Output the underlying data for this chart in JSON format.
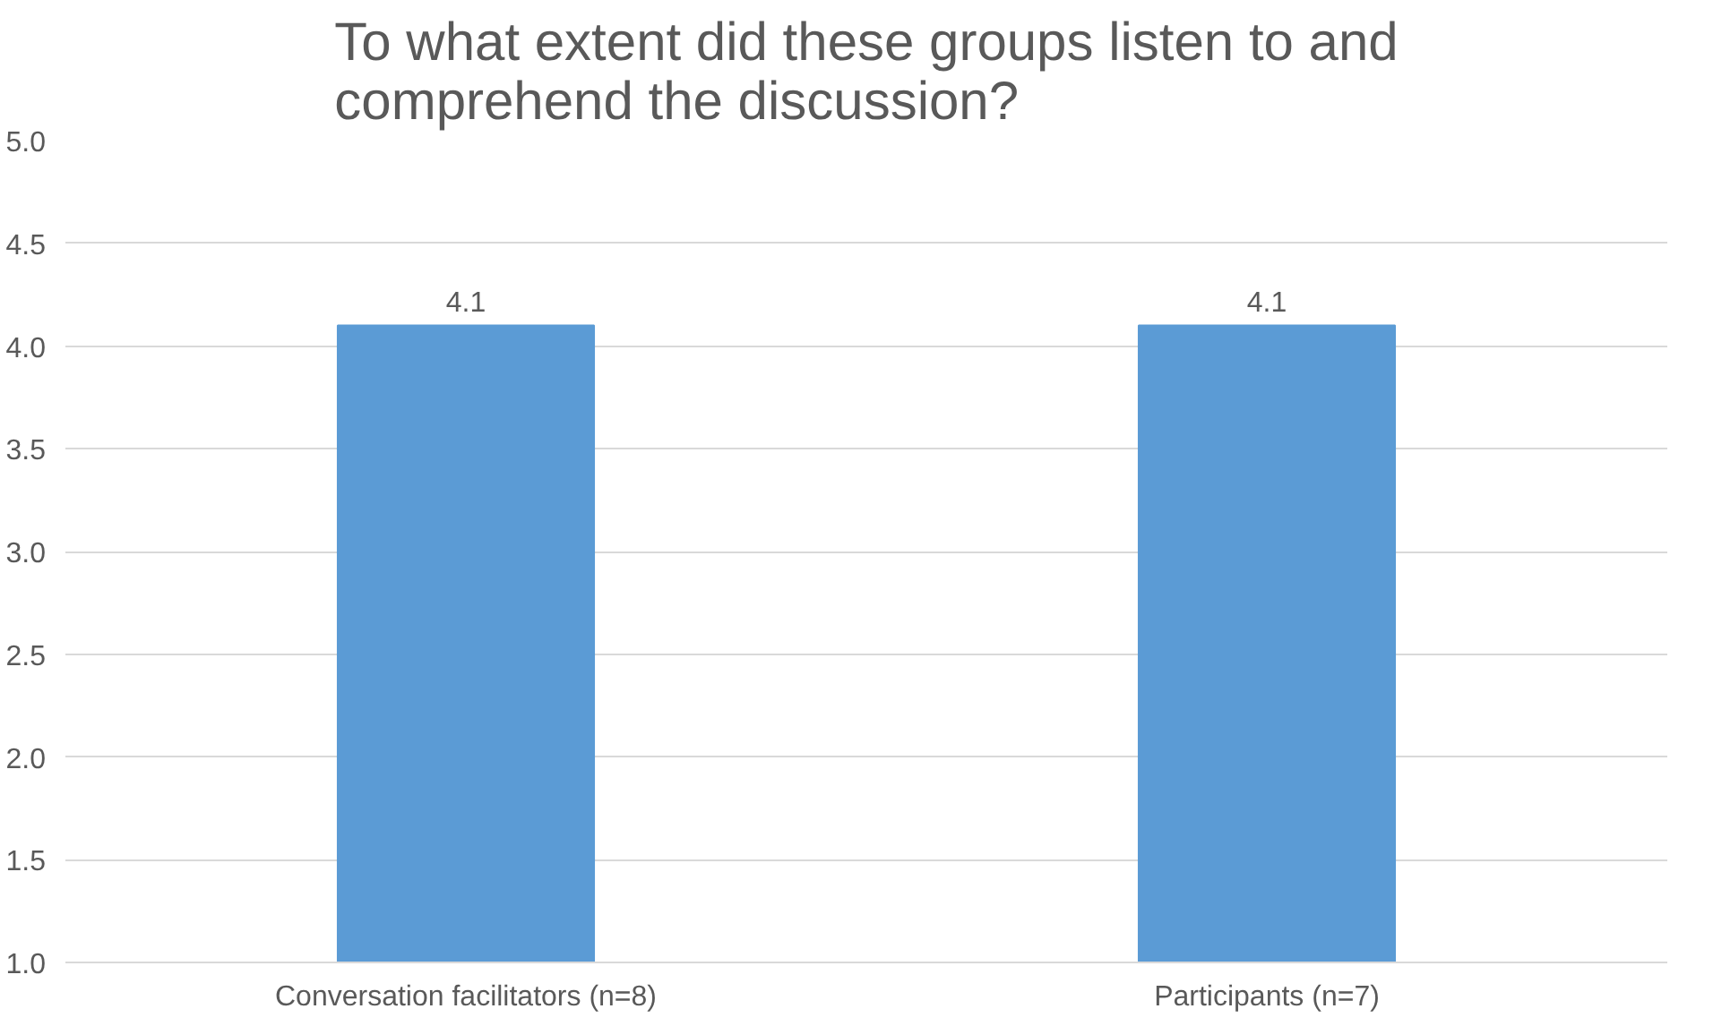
{
  "chart_data": {
    "type": "bar",
    "title": "To what extent did these groups listen to and comprehend the discussion?",
    "categories": [
      "Conversation facilitators (n=8)",
      "Participants (n=7)"
    ],
    "values": [
      4.1,
      4.1
    ],
    "color": "#5b9bd5",
    "data_labels": true,
    "grid": "y",
    "ylim": [
      1,
      5
    ],
    "yticks": [
      {
        "value": 1,
        "label": "1.0"
      },
      {
        "value": 1.5,
        "label": "1.5"
      },
      {
        "value": 2,
        "label": "2.0"
      },
      {
        "value": 2.5,
        "label": "2.5"
      },
      {
        "value": 3,
        "label": "3.0"
      },
      {
        "value": 3.5,
        "label": "3.5"
      },
      {
        "value": 4,
        "label": "4.0"
      },
      {
        "value": 4.5,
        "label": "4.5"
      },
      {
        "value": 5,
        "label": "5.0"
      }
    ]
  }
}
